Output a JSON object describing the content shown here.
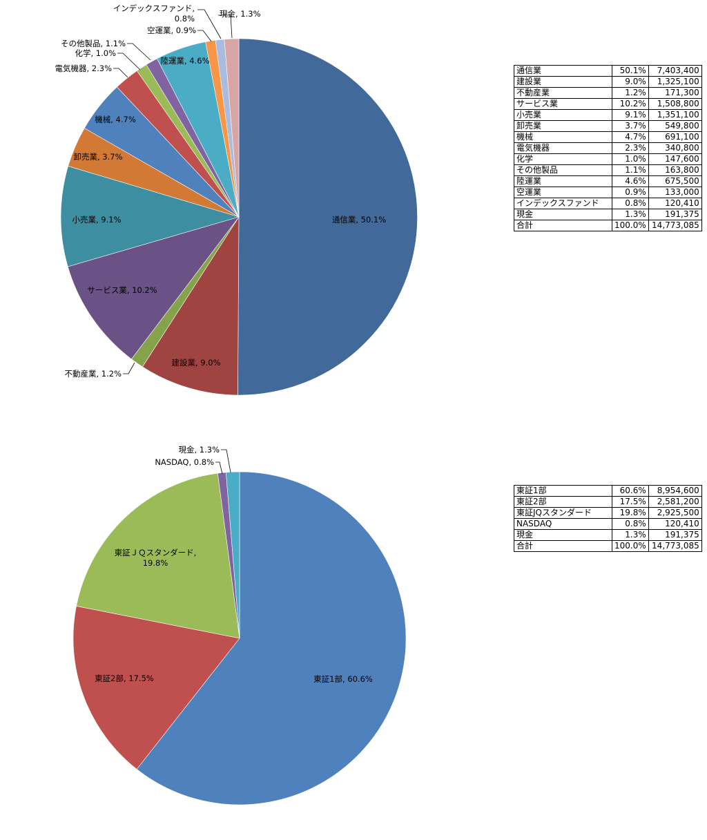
{
  "chart_data": [
    {
      "type": "pie",
      "title": "",
      "start_angle_deg": 0,
      "slices": [
        {
          "label": "通信業",
          "percent": 50.1,
          "value": 7403400,
          "display": "通信業, 50.1%",
          "color": "#416A9A"
        },
        {
          "label": "建設業",
          "percent": 9.0,
          "value": 1325100,
          "display": "建設業, 9.0%",
          "color": "#A04442"
        },
        {
          "label": "不動産業",
          "percent": 1.2,
          "value": 171300,
          "display": "不動産業, 1.2%",
          "color": "#84A34A"
        },
        {
          "label": "サービス業",
          "percent": 10.2,
          "value": 1508800,
          "display": "サービス業, 10.2%",
          "color": "#6A5287"
        },
        {
          "label": "小売業",
          "percent": 9.1,
          "value": 1351100,
          "display": "小売業, 9.1%",
          "color": "#3C8EA0"
        },
        {
          "label": "卸売業",
          "percent": 3.7,
          "value": 549800,
          "display": "卸売業, 3.7%",
          "color": "#D27A35"
        },
        {
          "label": "機械",
          "percent": 4.7,
          "value": 691100,
          "display": "機械, 4.7%",
          "color": "#4F81BD"
        },
        {
          "label": "電気機器",
          "percent": 2.3,
          "value": 340800,
          "display": "電気機器, 2.3%",
          "color": "#C0504D"
        },
        {
          "label": "化学",
          "percent": 1.0,
          "value": 147600,
          "display": "化学, 1.0%",
          "color": "#9BBB59"
        },
        {
          "label": "その他製品",
          "percent": 1.1,
          "value": 163800,
          "display": "その他製品, 1.1%",
          "color": "#8064A2"
        },
        {
          "label": "陸運業",
          "percent": 4.6,
          "value": 675500,
          "display": "陸運業, 4.6%",
          "color": "#4BACC6"
        },
        {
          "label": "空運業",
          "percent": 0.9,
          "value": 133000,
          "display": "空運業, 0.9%",
          "color": "#F79646"
        },
        {
          "label": "インデックスファンド",
          "percent": 0.8,
          "value": 120410,
          "display": "インデックスファンド, 0.8%",
          "color": "#A9BCDD"
        },
        {
          "label": "現金",
          "percent": 1.3,
          "value": 191375,
          "display": "現金, 1.3%",
          "color": "#D8A5A4"
        }
      ],
      "total": {
        "label": "合計",
        "percent": "100.0%",
        "value": "14,773,085"
      }
    },
    {
      "type": "pie",
      "title": "",
      "start_angle_deg": 0,
      "slices": [
        {
          "label": "東証1部",
          "percent": 60.6,
          "value": 8954600,
          "display": "東証1部, 60.6%",
          "color": "#4F81BD"
        },
        {
          "label": "東証2部",
          "percent": 17.5,
          "value": 2581200,
          "display": "東証2部, 17.5%",
          "color": "#C0504D"
        },
        {
          "label": "東証ＪＱスタンダード",
          "percent": 19.8,
          "value": 2925500,
          "display": "東証ＪＱスタンダード, 19.8%",
          "color": "#9BBB59"
        },
        {
          "label": "NASDAQ",
          "percent": 0.8,
          "value": 120410,
          "display": "NASDAQ, 0.8%",
          "color": "#8064A2"
        },
        {
          "label": "現金",
          "percent": 1.3,
          "value": 191375,
          "display": "現金, 1.3%",
          "color": "#4BACC6"
        }
      ],
      "total": {
        "label": "合計",
        "percent": "100.0%",
        "value": "14,773,085"
      }
    }
  ],
  "tables": {
    "industry": [
      [
        "通信業",
        "50.1%",
        "7,403,400"
      ],
      [
        "建設業",
        "9.0%",
        "1,325,100"
      ],
      [
        "不動産業",
        "1.2%",
        "171,300"
      ],
      [
        "サービス業",
        "10.2%",
        "1,508,800"
      ],
      [
        "小売業",
        "9.1%",
        "1,351,100"
      ],
      [
        "卸売業",
        "3.7%",
        "549,800"
      ],
      [
        "機械",
        "4.7%",
        "691,100"
      ],
      [
        "電気機器",
        "2.3%",
        "340,800"
      ],
      [
        "化学",
        "1.0%",
        "147,600"
      ],
      [
        "その他製品",
        "1.1%",
        "163,800"
      ],
      [
        "陸運業",
        "4.6%",
        "675,500"
      ],
      [
        "空運業",
        "0.9%",
        "133,000"
      ],
      [
        "インデックスファンド",
        "0.8%",
        "120,410"
      ],
      [
        "現金",
        "1.3%",
        "191,375"
      ],
      [
        "合計",
        "100.0%",
        "14,773,085"
      ]
    ],
    "market": [
      [
        "東証1部",
        "60.6%",
        "8,954,600"
      ],
      [
        "東証2部",
        "17.5%",
        "2,581,200"
      ],
      [
        "東証JQスタンダード",
        "19.8%",
        "2,925,500"
      ],
      [
        "NASDAQ",
        "0.8%",
        "120,410"
      ],
      [
        "現金",
        "1.3%",
        "191,375"
      ],
      [
        "合計",
        "100.0%",
        "14,773,085"
      ]
    ]
  }
}
